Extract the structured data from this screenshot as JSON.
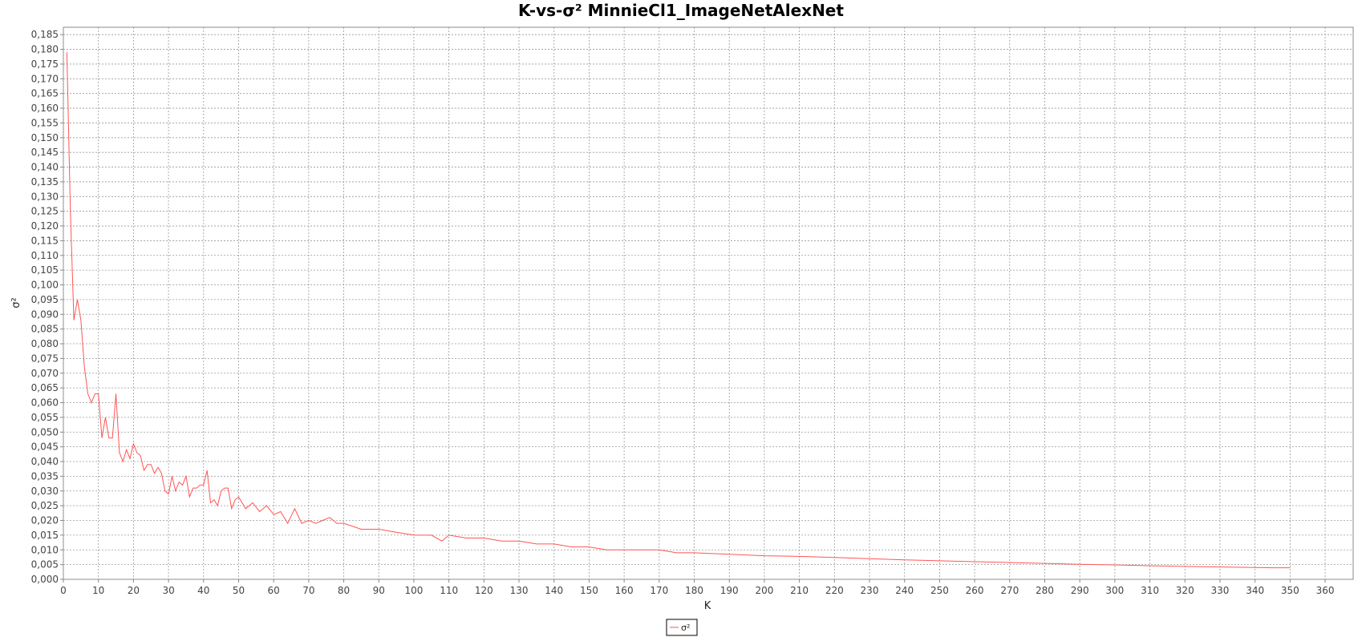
{
  "chart_data": {
    "type": "line",
    "title": "K-vs-σ² MinnieCl1_ImageNetAlexNet",
    "xlabel": "K",
    "ylabel": "σ²",
    "xlim": [
      0,
      368
    ],
    "ylim": [
      0,
      0.1875
    ],
    "x_ticks": [
      0,
      10,
      20,
      30,
      40,
      50,
      60,
      70,
      80,
      90,
      100,
      110,
      120,
      130,
      140,
      150,
      160,
      170,
      180,
      190,
      200,
      210,
      220,
      230,
      240,
      250,
      260,
      270,
      280,
      290,
      300,
      310,
      320,
      330,
      340,
      350,
      360
    ],
    "y_ticks": [
      "0,000",
      "0,005",
      "0,010",
      "0,015",
      "0,020",
      "0,025",
      "0,030",
      "0,035",
      "0,040",
      "0,045",
      "0,050",
      "0,055",
      "0,060",
      "0,065",
      "0,070",
      "0,075",
      "0,080",
      "0,085",
      "0,090",
      "0,095",
      "0,100",
      "0,105",
      "0,110",
      "0,115",
      "0,120",
      "0,125",
      "0,130",
      "0,135",
      "0,140",
      "0,145",
      "0,150",
      "0,155",
      "0,160",
      "0,165",
      "0,170",
      "0,175",
      "0,180",
      "0,185"
    ],
    "grid": true,
    "legend_position": "bottom-center",
    "series": [
      {
        "name": "σ²",
        "color": "#ff5555",
        "x": [
          1,
          2,
          3,
          4,
          5,
          6,
          7,
          8,
          9,
          10,
          11,
          12,
          13,
          14,
          15,
          16,
          17,
          18,
          19,
          20,
          21,
          22,
          23,
          24,
          25,
          26,
          27,
          28,
          29,
          30,
          31,
          32,
          33,
          34,
          35,
          36,
          37,
          38,
          39,
          40,
          41,
          42,
          43,
          44,
          45,
          46,
          47,
          48,
          49,
          50,
          52,
          54,
          56,
          58,
          60,
          62,
          64,
          66,
          68,
          70,
          72,
          74,
          76,
          78,
          80,
          85,
          90,
          95,
          100,
          105,
          108,
          110,
          115,
          120,
          125,
          130,
          135,
          140,
          145,
          150,
          155,
          160,
          170,
          175,
          177,
          180,
          190,
          200,
          210,
          220,
          230,
          240,
          250,
          260,
          270,
          280,
          290,
          300,
          310,
          320,
          330,
          340,
          345,
          350
        ],
        "y": [
          0.179,
          0.125,
          0.088,
          0.095,
          0.088,
          0.072,
          0.063,
          0.06,
          0.063,
          0.063,
          0.048,
          0.055,
          0.048,
          0.048,
          0.063,
          0.043,
          0.04,
          0.044,
          0.041,
          0.046,
          0.043,
          0.042,
          0.037,
          0.039,
          0.039,
          0.036,
          0.038,
          0.036,
          0.03,
          0.029,
          0.035,
          0.03,
          0.033,
          0.032,
          0.035,
          0.028,
          0.031,
          0.031,
          0.032,
          0.032,
          0.037,
          0.026,
          0.027,
          0.025,
          0.03,
          0.031,
          0.031,
          0.024,
          0.027,
          0.028,
          0.024,
          0.026,
          0.023,
          0.025,
          0.022,
          0.023,
          0.019,
          0.024,
          0.019,
          0.02,
          0.019,
          0.02,
          0.021,
          0.019,
          0.019,
          0.017,
          0.017,
          0.016,
          0.015,
          0.015,
          0.013,
          0.015,
          0.014,
          0.014,
          0.013,
          0.013,
          0.012,
          0.012,
          0.011,
          0.011,
          0.01,
          0.01,
          0.01,
          0.009,
          0.009,
          0.009,
          0.0085,
          0.008,
          0.0078,
          0.0074,
          0.007,
          0.0066,
          0.0063,
          0.006,
          0.0057,
          0.0054,
          0.0051,
          0.0049,
          0.0046,
          0.0044,
          0.0042,
          0.004,
          0.0039,
          0.0039
        ]
      }
    ]
  }
}
